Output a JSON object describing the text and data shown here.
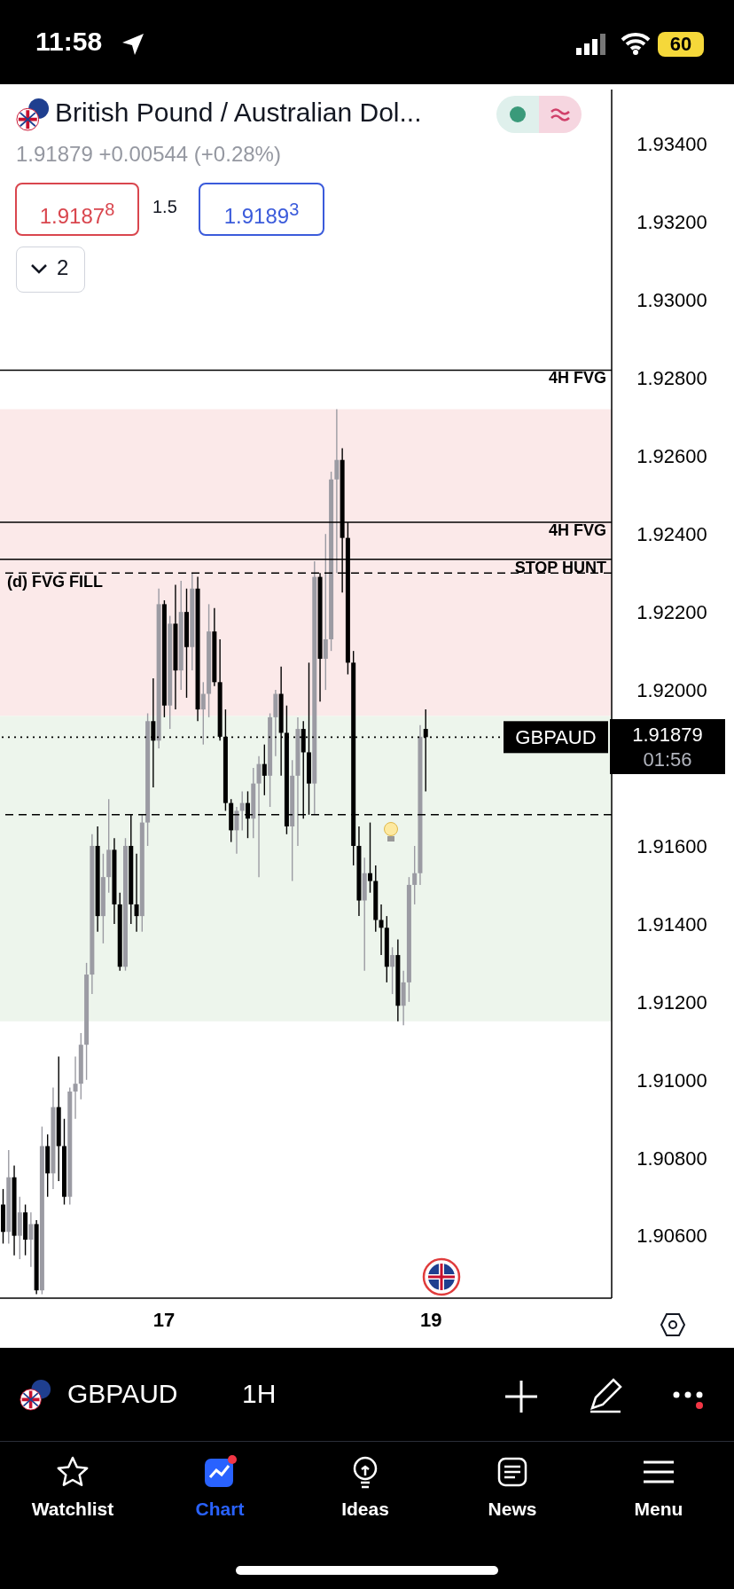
{
  "chart_data": {
    "type": "candlestick",
    "title": "British Pound / Australian Dol...",
    "subtitle": "1.91879 +0.00544 (+0.28%)",
    "categories": [
      null,
      null,
      null,
      null,
      null,
      null,
      null,
      null,
      null,
      null,
      null,
      null,
      null,
      null,
      null,
      null,
      null,
      null,
      null,
      null,
      null,
      null,
      null,
      null,
      null,
      null,
      null,
      null,
      null,
      "17",
      null,
      null,
      null,
      null,
      null,
      null,
      null,
      null,
      null,
      null,
      null,
      null,
      null,
      null,
      null,
      null,
      null,
      null,
      null,
      null,
      null,
      null,
      null,
      null,
      null,
      null,
      null,
      null,
      null,
      null,
      null,
      null,
      null,
      null,
      null,
      null,
      null,
      null,
      null,
      null,
      null,
      null,
      null,
      null,
      null,
      null,
      null,
      "19",
      null,
      null,
      null,
      null,
      null,
      null,
      null,
      null,
      null,
      null,
      null,
      null,
      null,
      null,
      null,
      null,
      null,
      null,
      null,
      null,
      null,
      null,
      null,
      null,
      null,
      null,
      null,
      null,
      null,
      null,
      null,
      null
    ],
    "ohlc": [
      [
        1.9068,
        1.9072,
        1.9058,
        1.9061
      ],
      [
        1.9061,
        1.9082,
        1.9058,
        1.9075
      ],
      [
        1.9075,
        1.9078,
        1.9055,
        1.906
      ],
      [
        1.906,
        1.907,
        1.9054,
        1.9066
      ],
      [
        1.9066,
        1.9068,
        1.9055,
        1.9059
      ],
      [
        1.9059,
        1.9066,
        1.9052,
        1.9063
      ],
      [
        1.9063,
        1.9064,
        1.9045,
        1.9046
      ],
      [
        1.9046,
        1.9088,
        1.9045,
        1.9083
      ],
      [
        1.9083,
        1.9086,
        1.907,
        1.9076
      ],
      [
        1.9076,
        1.9098,
        1.9072,
        1.9093
      ],
      [
        1.9093,
        1.9106,
        1.9074,
        1.9083
      ],
      [
        1.9083,
        1.909,
        1.9068,
        1.907
      ],
      [
        1.907,
        1.9098,
        1.9068,
        1.9097
      ],
      [
        1.9097,
        1.9106,
        1.909,
        1.9099
      ],
      [
        1.9099,
        1.9112,
        1.9095,
        1.9109
      ],
      [
        1.9109,
        1.913,
        1.91,
        1.9127
      ],
      [
        1.9127,
        1.9163,
        1.9122,
        1.916
      ],
      [
        1.916,
        1.9165,
        1.9138,
        1.9142
      ],
      [
        1.9142,
        1.9158,
        1.9135,
        1.9152
      ],
      [
        1.9152,
        1.9172,
        1.9148,
        1.9159
      ],
      [
        1.9159,
        1.9162,
        1.914,
        1.9145
      ],
      [
        1.9145,
        1.9148,
        1.9128,
        1.9129
      ],
      [
        1.9129,
        1.9162,
        1.9128,
        1.916
      ],
      [
        1.916,
        1.9168,
        1.914,
        1.9145
      ],
      [
        1.9145,
        1.9158,
        1.9138,
        1.9142
      ],
      [
        1.9142,
        1.9168,
        1.9138,
        1.9166
      ],
      [
        1.9166,
        1.9194,
        1.916,
        1.9192
      ],
      [
        1.9192,
        1.9203,
        1.9175,
        1.9187
      ],
      [
        1.9187,
        1.9226,
        1.9185,
        1.9222
      ],
      [
        1.9222,
        1.9223,
        1.9193,
        1.9196
      ],
      [
        1.9196,
        1.9219,
        1.919,
        1.9217
      ],
      [
        1.9217,
        1.9227,
        1.9195,
        1.9205
      ],
      [
        1.9205,
        1.9228,
        1.92,
        1.922
      ],
      [
        1.922,
        1.9226,
        1.9198,
        1.9211
      ],
      [
        1.9211,
        1.923,
        1.9205,
        1.9226
      ],
      [
        1.9226,
        1.9229,
        1.9192,
        1.9195
      ],
      [
        1.9195,
        1.9202,
        1.9186,
        1.9199
      ],
      [
        1.9199,
        1.9222,
        1.9193,
        1.9215
      ],
      [
        1.9215,
        1.9221,
        1.9201,
        1.9202
      ],
      [
        1.9202,
        1.9213,
        1.9187,
        1.9188
      ],
      [
        1.9188,
        1.9195,
        1.9169,
        1.9171
      ],
      [
        1.9171,
        1.9172,
        1.9161,
        1.9164
      ],
      [
        1.9164,
        1.917,
        1.9158,
        1.9169
      ],
      [
        1.9169,
        1.9174,
        1.9164,
        1.9171
      ],
      [
        1.9171,
        1.9174,
        1.9162,
        1.9167
      ],
      [
        1.9167,
        1.918,
        1.9162,
        1.9176
      ],
      [
        1.9176,
        1.9183,
        1.9152,
        1.9181
      ],
      [
        1.9181,
        1.9186,
        1.9173,
        1.9178
      ],
      [
        1.9178,
        1.9194,
        1.917,
        1.9193
      ],
      [
        1.9193,
        1.92,
        1.9183,
        1.9199
      ],
      [
        1.9199,
        1.9206,
        1.9178,
        1.9189
      ],
      [
        1.9189,
        1.9196,
        1.9163,
        1.9165
      ],
      [
        1.9165,
        1.9182,
        1.9151,
        1.9178
      ],
      [
        1.9178,
        1.9193,
        1.916,
        1.919
      ],
      [
        1.919,
        1.9192,
        1.9167,
        1.9184
      ],
      [
        1.9184,
        1.9207,
        1.9168,
        1.9176
      ],
      [
        1.9176,
        1.9233,
        1.9168,
        1.9229
      ],
      [
        1.9229,
        1.923,
        1.9197,
        1.9208
      ],
      [
        1.9208,
        1.924,
        1.92,
        1.9213
      ],
      [
        1.9213,
        1.9256,
        1.921,
        1.9254
      ],
      [
        1.9254,
        1.9272,
        1.923,
        1.9259
      ],
      [
        1.9259,
        1.9262,
        1.9225,
        1.9239
      ],
      [
        1.9239,
        1.9243,
        1.9204,
        1.9207
      ],
      [
        1.9207,
        1.921,
        1.9155,
        1.916
      ],
      [
        1.916,
        1.9165,
        1.9142,
        1.9146
      ],
      [
        1.9146,
        1.9157,
        1.9128,
        1.9153
      ],
      [
        1.9153,
        1.9166,
        1.9148,
        1.9151
      ],
      [
        1.9151,
        1.9155,
        1.9138,
        1.9141
      ],
      [
        1.9141,
        1.9145,
        1.9132,
        1.9139
      ],
      [
        1.9139,
        1.9142,
        1.9125,
        1.9129
      ],
      [
        1.9129,
        1.9134,
        1.9122,
        1.9132
      ],
      [
        1.9132,
        1.9136,
        1.9115,
        1.9119
      ],
      [
        1.9119,
        1.9128,
        1.9114,
        1.9125
      ],
      [
        1.9125,
        1.9152,
        1.912,
        1.915
      ],
      [
        1.915,
        1.916,
        1.9145,
        1.9153
      ],
      [
        1.9153,
        1.9191,
        1.915,
        1.9188
      ],
      [
        1.919,
        1.9195,
        1.9174,
        1.91879
      ],
      null,
      null,
      null,
      null,
      null,
      null,
      null,
      null,
      null,
      null,
      null,
      null,
      null,
      null,
      null,
      null,
      null,
      null,
      null,
      null,
      null,
      null,
      null,
      null,
      null,
      null,
      null,
      null,
      null,
      null,
      null,
      null,
      null
    ],
    "colors": [
      "#000000",
      "#9b9ba3",
      "#000000",
      "#9b9ba3",
      "#000000",
      "#9b9ba3",
      "#000000",
      "#9b9ba3",
      "#000000",
      "#9b9ba3",
      "#000000",
      "#000000",
      "#9b9ba3",
      "#9b9ba3",
      "#9b9ba3",
      "#9b9ba3",
      "#9b9ba3",
      "#000000",
      "#9b9ba3",
      "#9b9ba3",
      "#000000",
      "#000000",
      "#9b9ba3",
      "#000000",
      "#000000",
      "#9b9ba3",
      "#9b9ba3",
      "#000000",
      "#9b9ba3",
      "#000000",
      "#9b9ba3",
      "#000000",
      "#9b9ba3",
      "#000000",
      "#9b9ba3",
      "#000000",
      "#9b9ba3",
      "#9b9ba3",
      "#000000",
      "#000000",
      "#000000",
      "#000000",
      "#9b9ba3",
      "#9b9ba3",
      "#000000",
      "#9b9ba3",
      "#9b9ba3",
      "#000000",
      "#9b9ba3",
      "#9b9ba3",
      "#000000",
      "#000000",
      "#9b9ba3",
      "#9b9ba3",
      "#000000",
      "#000000",
      "#9b9ba3",
      "#000000",
      "#9b9ba3",
      "#9b9ba3",
      "#9b9ba3",
      "#000000",
      "#000000",
      "#000000",
      "#000000",
      "#9b9ba3",
      "#000000",
      "#000000",
      "#000000",
      "#000000",
      "#9b9ba3",
      "#000000",
      "#9b9ba3",
      "#9b9ba3",
      "#9b9ba3",
      "#9b9ba3",
      "#000000",
      null,
      null,
      null,
      null,
      null,
      null,
      null,
      null,
      null,
      null,
      null,
      null,
      null,
      null,
      null,
      null,
      null,
      null,
      null,
      null,
      null,
      null,
      null,
      null,
      null,
      null,
      null,
      null,
      null,
      null,
      null,
      null,
      null
    ],
    "ylim": [
      1.9044,
      1.9354
    ],
    "yticks": [
      {
        "value": 1.906,
        "label": "1.90600"
      },
      {
        "value": 1.908,
        "label": "1.90800"
      },
      {
        "value": 1.91,
        "label": "1.91000"
      },
      {
        "value": 1.912,
        "label": "1.91200"
      },
      {
        "value": 1.914,
        "label": "1.91400"
      },
      {
        "value": 1.916,
        "label": "1.91600"
      },
      {
        "value": 1.92,
        "label": "1.92000"
      },
      {
        "value": 1.922,
        "label": "1.92200"
      },
      {
        "value": 1.924,
        "label": "1.92400"
      },
      {
        "value": 1.926,
        "label": "1.92600"
      },
      {
        "value": 1.928,
        "label": "1.92800"
      },
      {
        "value": 1.93,
        "label": "1.93000"
      },
      {
        "value": 1.932,
        "label": "1.93200"
      },
      {
        "value": 1.934,
        "label": "1.93400"
      }
    ],
    "bands": [
      {
        "axis": "y",
        "from": 1.91933,
        "to": 1.9272,
        "color": "#fbe9e9"
      },
      {
        "axis": "y",
        "from": 1.9115,
        "to": 1.91933,
        "color": "#edf5ec"
      }
    ],
    "ref_lines": [
      {
        "axis": "y",
        "value": 1.9282,
        "label": "4H FVG",
        "color": "#000000",
        "line_style": "solid"
      },
      {
        "axis": "y",
        "value": 1.9243,
        "label": "4H FVG",
        "color": "#000000",
        "line_style": "solid"
      },
      {
        "axis": "y",
        "value": 1.92335,
        "label": "STOP HUNT",
        "color": "#000000",
        "line_style": "solid"
      },
      {
        "axis": "y",
        "value": 1.923,
        "label": "(d) FVG FILL",
        "color": "#000000",
        "line_style": "dashed"
      },
      {
        "axis": "y",
        "value": 1.9168,
        "color": "#000000",
        "line_style": "dashed"
      },
      {
        "axis": "y",
        "value": 1.91879,
        "label": "GBPAUD",
        "color": "#000000",
        "line_style": "dotted"
      }
    ],
    "annotations": [
      "1.9187$^{8}$",
      "1.5",
      "1.9189$^{3}$",
      "2",
      "1.91879",
      "01:56",
      "GBPAUD",
      "1H",
      "Watchlist",
      "Chart",
      "Ideas",
      "News",
      "Menu",
      "11:58",
      "60"
    ]
  }
}
